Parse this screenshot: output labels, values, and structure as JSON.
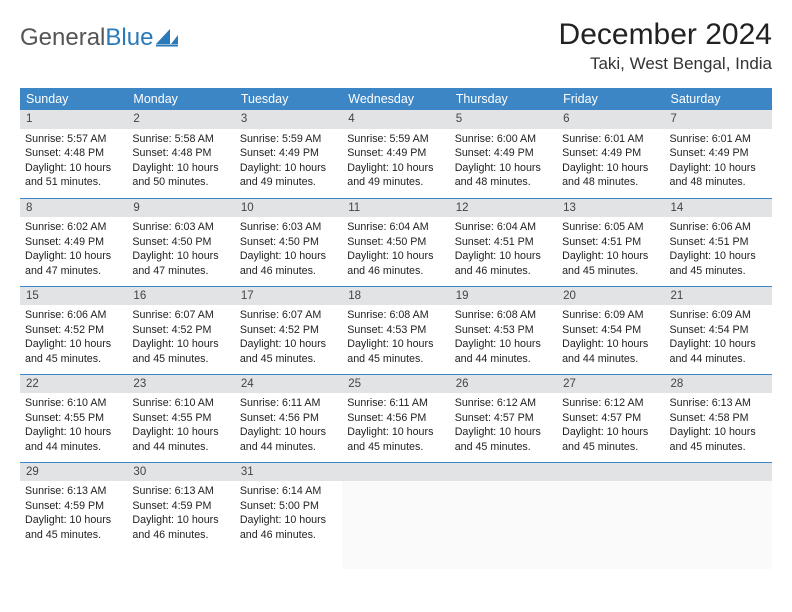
{
  "logo": {
    "text_gray": "General",
    "text_blue": "Blue"
  },
  "title": "December 2024",
  "location": "Taki, West Bengal, India",
  "colors": {
    "header_bg": "#3d86c6",
    "header_fg": "#ffffff",
    "daynum_bg": "#e2e3e4",
    "rule": "#3d86c6",
    "logo_blue": "#2a7ab9",
    "logo_gray": "#555555"
  },
  "dow": [
    "Sunday",
    "Monday",
    "Tuesday",
    "Wednesday",
    "Thursday",
    "Friday",
    "Saturday"
  ],
  "weeks": [
    [
      {
        "n": "1",
        "sr": "Sunrise: 5:57 AM",
        "ss": "Sunset: 4:48 PM",
        "dl": "Daylight: 10 hours and 51 minutes."
      },
      {
        "n": "2",
        "sr": "Sunrise: 5:58 AM",
        "ss": "Sunset: 4:48 PM",
        "dl": "Daylight: 10 hours and 50 minutes."
      },
      {
        "n": "3",
        "sr": "Sunrise: 5:59 AM",
        "ss": "Sunset: 4:49 PM",
        "dl": "Daylight: 10 hours and 49 minutes."
      },
      {
        "n": "4",
        "sr": "Sunrise: 5:59 AM",
        "ss": "Sunset: 4:49 PM",
        "dl": "Daylight: 10 hours and 49 minutes."
      },
      {
        "n": "5",
        "sr": "Sunrise: 6:00 AM",
        "ss": "Sunset: 4:49 PM",
        "dl": "Daylight: 10 hours and 48 minutes."
      },
      {
        "n": "6",
        "sr": "Sunrise: 6:01 AM",
        "ss": "Sunset: 4:49 PM",
        "dl": "Daylight: 10 hours and 48 minutes."
      },
      {
        "n": "7",
        "sr": "Sunrise: 6:01 AM",
        "ss": "Sunset: 4:49 PM",
        "dl": "Daylight: 10 hours and 48 minutes."
      }
    ],
    [
      {
        "n": "8",
        "sr": "Sunrise: 6:02 AM",
        "ss": "Sunset: 4:49 PM",
        "dl": "Daylight: 10 hours and 47 minutes."
      },
      {
        "n": "9",
        "sr": "Sunrise: 6:03 AM",
        "ss": "Sunset: 4:50 PM",
        "dl": "Daylight: 10 hours and 47 minutes."
      },
      {
        "n": "10",
        "sr": "Sunrise: 6:03 AM",
        "ss": "Sunset: 4:50 PM",
        "dl": "Daylight: 10 hours and 46 minutes."
      },
      {
        "n": "11",
        "sr": "Sunrise: 6:04 AM",
        "ss": "Sunset: 4:50 PM",
        "dl": "Daylight: 10 hours and 46 minutes."
      },
      {
        "n": "12",
        "sr": "Sunrise: 6:04 AM",
        "ss": "Sunset: 4:51 PM",
        "dl": "Daylight: 10 hours and 46 minutes."
      },
      {
        "n": "13",
        "sr": "Sunrise: 6:05 AM",
        "ss": "Sunset: 4:51 PM",
        "dl": "Daylight: 10 hours and 45 minutes."
      },
      {
        "n": "14",
        "sr": "Sunrise: 6:06 AM",
        "ss": "Sunset: 4:51 PM",
        "dl": "Daylight: 10 hours and 45 minutes."
      }
    ],
    [
      {
        "n": "15",
        "sr": "Sunrise: 6:06 AM",
        "ss": "Sunset: 4:52 PM",
        "dl": "Daylight: 10 hours and 45 minutes."
      },
      {
        "n": "16",
        "sr": "Sunrise: 6:07 AM",
        "ss": "Sunset: 4:52 PM",
        "dl": "Daylight: 10 hours and 45 minutes."
      },
      {
        "n": "17",
        "sr": "Sunrise: 6:07 AM",
        "ss": "Sunset: 4:52 PM",
        "dl": "Daylight: 10 hours and 45 minutes."
      },
      {
        "n": "18",
        "sr": "Sunrise: 6:08 AM",
        "ss": "Sunset: 4:53 PM",
        "dl": "Daylight: 10 hours and 45 minutes."
      },
      {
        "n": "19",
        "sr": "Sunrise: 6:08 AM",
        "ss": "Sunset: 4:53 PM",
        "dl": "Daylight: 10 hours and 44 minutes."
      },
      {
        "n": "20",
        "sr": "Sunrise: 6:09 AM",
        "ss": "Sunset: 4:54 PM",
        "dl": "Daylight: 10 hours and 44 minutes."
      },
      {
        "n": "21",
        "sr": "Sunrise: 6:09 AM",
        "ss": "Sunset: 4:54 PM",
        "dl": "Daylight: 10 hours and 44 minutes."
      }
    ],
    [
      {
        "n": "22",
        "sr": "Sunrise: 6:10 AM",
        "ss": "Sunset: 4:55 PM",
        "dl": "Daylight: 10 hours and 44 minutes."
      },
      {
        "n": "23",
        "sr": "Sunrise: 6:10 AM",
        "ss": "Sunset: 4:55 PM",
        "dl": "Daylight: 10 hours and 44 minutes."
      },
      {
        "n": "24",
        "sr": "Sunrise: 6:11 AM",
        "ss": "Sunset: 4:56 PM",
        "dl": "Daylight: 10 hours and 44 minutes."
      },
      {
        "n": "25",
        "sr": "Sunrise: 6:11 AM",
        "ss": "Sunset: 4:56 PM",
        "dl": "Daylight: 10 hours and 45 minutes."
      },
      {
        "n": "26",
        "sr": "Sunrise: 6:12 AM",
        "ss": "Sunset: 4:57 PM",
        "dl": "Daylight: 10 hours and 45 minutes."
      },
      {
        "n": "27",
        "sr": "Sunrise: 6:12 AM",
        "ss": "Sunset: 4:57 PM",
        "dl": "Daylight: 10 hours and 45 minutes."
      },
      {
        "n": "28",
        "sr": "Sunrise: 6:13 AM",
        "ss": "Sunset: 4:58 PM",
        "dl": "Daylight: 10 hours and 45 minutes."
      }
    ],
    [
      {
        "n": "29",
        "sr": "Sunrise: 6:13 AM",
        "ss": "Sunset: 4:59 PM",
        "dl": "Daylight: 10 hours and 45 minutes."
      },
      {
        "n": "30",
        "sr": "Sunrise: 6:13 AM",
        "ss": "Sunset: 4:59 PM",
        "dl": "Daylight: 10 hours and 46 minutes."
      },
      {
        "n": "31",
        "sr": "Sunrise: 6:14 AM",
        "ss": "Sunset: 5:00 PM",
        "dl": "Daylight: 10 hours and 46 minutes."
      },
      {
        "n": "",
        "sr": "",
        "ss": "",
        "dl": ""
      },
      {
        "n": "",
        "sr": "",
        "ss": "",
        "dl": ""
      },
      {
        "n": "",
        "sr": "",
        "ss": "",
        "dl": ""
      },
      {
        "n": "",
        "sr": "",
        "ss": "",
        "dl": ""
      }
    ]
  ]
}
